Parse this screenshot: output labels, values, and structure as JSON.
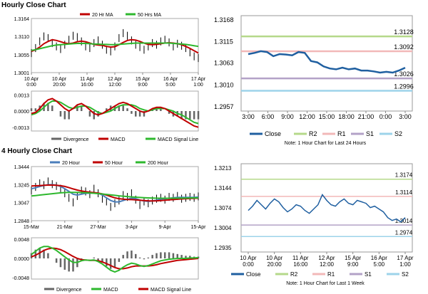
{
  "sections": {
    "top_title": "Hourly Close Chart",
    "bottom_title": "4 Hourly Close Chart"
  },
  "chart_data": [
    {
      "id": "hourly-price",
      "type": "line",
      "x_ticks": [
        "10 Apr\n0:00",
        "10 Apr\n20:00",
        "11 Apr\n16:00",
        "12 Apr\n12:00",
        "15 Apr\n9:00",
        "16 Apr\n5:00",
        "17 Apr\n1:00"
      ],
      "y_ticks": [
        1.3001,
        1.3055,
        1.311,
        1.3164
      ],
      "ylim": [
        1.3001,
        1.3164
      ],
      "legend": [
        "20 Hr MA",
        "50 Hrs MA"
      ],
      "colors": {
        "price": "#000000",
        "ma20": "#c00000",
        "ma50": "#2eb82e"
      },
      "close": [
        1.306,
        1.3075,
        1.3095,
        1.311,
        1.3105,
        1.309,
        1.308,
        1.3072,
        1.3085,
        1.31,
        1.3112,
        1.3108,
        1.3095,
        1.308,
        1.3075,
        1.309,
        1.3098,
        1.3085,
        1.307,
        1.3065,
        1.308,
        1.3105,
        1.312,
        1.3112,
        1.3098,
        1.3085,
        1.3078,
        1.307,
        1.308,
        1.309,
        1.3085,
        1.3095,
        1.31,
        1.3092,
        1.308,
        1.3088,
        1.3082,
        1.3075,
        1.3062,
        1.305,
        1.3045
      ],
      "ma20": [
        1.3065,
        1.307,
        1.3078,
        1.3088,
        1.3095,
        1.31,
        1.3098,
        1.3094,
        1.309,
        1.3088,
        1.309,
        1.3094,
        1.3096,
        1.3094,
        1.309,
        1.3086,
        1.3084,
        1.3083,
        1.308,
        1.3078,
        1.3079,
        1.3085,
        1.3092,
        1.3098,
        1.31,
        1.3099,
        1.3095,
        1.309,
        1.3086,
        1.3085,
        1.3086,
        1.3088,
        1.309,
        1.3091,
        1.309,
        1.3088,
        1.3085,
        1.308,
        1.3074,
        1.3067,
        1.306
      ],
      "ma50": [
        1.3068,
        1.307,
        1.3073,
        1.3076,
        1.3079,
        1.3082,
        1.3084,
        1.3085,
        1.3086,
        1.3087,
        1.3088,
        1.3089,
        1.3089,
        1.3089,
        1.3088,
        1.3087,
        1.3087,
        1.3086,
        1.3086,
        1.3085,
        1.3085,
        1.3086,
        1.3087,
        1.3088,
        1.3089,
        1.309,
        1.309,
        1.309,
        1.309,
        1.309,
        1.309,
        1.309,
        1.309,
        1.309,
        1.3089,
        1.3088,
        1.3087,
        1.3086,
        1.3084,
        1.3082,
        1.308
      ]
    },
    {
      "id": "hourly-macd",
      "type": "line",
      "y_ticks": [
        -0.0013,
        0.0,
        0.0013
      ],
      "ylim": [
        -0.0016,
        0.0016
      ],
      "legend": [
        "Divergence",
        "MACD",
        "MACD Signal Line"
      ],
      "colors": {
        "divergence": "#666666",
        "macd": "#c00000",
        "signal": "#2eb82e"
      },
      "macd": [
        -0.0002,
        -0.0001,
        0.0002,
        0.0006,
        0.0009,
        0.001,
        0.0008,
        0.0005,
        0.0002,
        0.0,
        0.0002,
        0.0005,
        0.0006,
        0.0004,
        0.0001,
        -0.0002,
        -0.0003,
        -0.0002,
        0.0,
        0.0002,
        0.0004,
        0.0006,
        0.0007,
        0.0006,
        0.0004,
        0.0002,
        0.0,
        -0.0001,
        0.0,
        0.0002,
        0.0003,
        0.0003,
        0.0002,
        0.0,
        -0.0002,
        -0.0004,
        -0.0006,
        -0.0008,
        -0.001,
        -0.0012,
        -0.0013
      ],
      "signal": [
        -0.0003,
        -0.0002,
        0.0,
        0.0003,
        0.0006,
        0.0008,
        0.0008,
        0.0007,
        0.0005,
        0.0003,
        0.0002,
        0.0003,
        0.0004,
        0.0004,
        0.0003,
        0.0001,
        -0.0001,
        -0.0002,
        -0.0001,
        0.0,
        0.0002,
        0.0004,
        0.0005,
        0.0005,
        0.0005,
        0.0004,
        0.0002,
        0.0001,
        0.0,
        0.0001,
        0.0002,
        0.0002,
        0.0002,
        0.0001,
        0.0,
        -0.0002,
        -0.0003,
        -0.0005,
        -0.0007,
        -0.0009,
        -0.001
      ]
    },
    {
      "id": "hourly-24h",
      "type": "line",
      "x_ticks": [
        "3:00",
        "6:00",
        "9:00",
        "12:00",
        "15:00",
        "18:00",
        "21:00",
        "0:00",
        "3:00"
      ],
      "y_ticks": [
        1.2957,
        1.301,
        1.3063,
        1.3115,
        1.3168
      ],
      "ylim": [
        1.2957,
        1.3168
      ],
      "levels": [
        {
          "name": "R2",
          "value": 1.3128,
          "label": "1.3128",
          "color": "#b5d98a"
        },
        {
          "name": "R1",
          "value": 1.3092,
          "label": "1.3092",
          "color": "#f2b8b8"
        },
        {
          "name": "S1",
          "value": 1.3026,
          "label": "1.3026",
          "color": "#b3a2c7"
        },
        {
          "name": "S2",
          "value": 1.2996,
          "label": "1.2996",
          "color": "#9dd3ea"
        }
      ],
      "close_color": "#1f5fa0",
      "close": [
        1.3085,
        1.3088,
        1.3092,
        1.309,
        1.308,
        1.3085,
        1.3084,
        1.3082,
        1.309,
        1.3088,
        1.3068,
        1.3065,
        1.3055,
        1.305,
        1.3048,
        1.3052,
        1.3048,
        1.305,
        1.3045,
        1.3045,
        1.3043,
        1.304,
        1.3042,
        1.304,
        1.3045,
        1.3052
      ],
      "legend": [
        "Close",
        "R2",
        "R1",
        "S1",
        "S2"
      ],
      "note": "Note: 1 Hour Chart for Last 24 Hours"
    },
    {
      "id": "4h-price",
      "type": "line",
      "x_ticks": [
        "15-Mar",
        "21-Mar",
        "27-Mar",
        "3-Apr",
        "9-Apr",
        "15-Apr"
      ],
      "y_ticks": [
        1.2848,
        1.3047,
        1.3245,
        1.3444
      ],
      "ylim": [
        1.2848,
        1.3444
      ],
      "legend": [
        "20 Hour",
        "50 Hour",
        "200 Hour"
      ],
      "colors": {
        "price": "#000000",
        "h20": "#4a7ebb",
        "h50": "#c00000",
        "h200": "#2eb82e"
      },
      "close": [
        1.318,
        1.322,
        1.326,
        1.324,
        1.328,
        1.325,
        1.323,
        1.32,
        1.315,
        1.31,
        1.305,
        1.312,
        1.318,
        1.317,
        1.314,
        1.32,
        1.315,
        1.309,
        1.306,
        1.3,
        1.304,
        1.307,
        1.313,
        1.311,
        1.315,
        1.308,
        1.302,
        1.306,
        1.304,
        1.307,
        1.309,
        1.31,
        1.308,
        1.311,
        1.31,
        1.312,
        1.309,
        1.31,
        1.311,
        1.31,
        1.3115
      ],
      "h20": [
        1.32,
        1.321,
        1.3225,
        1.3235,
        1.3245,
        1.3245,
        1.324,
        1.3225,
        1.32,
        1.317,
        1.314,
        1.313,
        1.314,
        1.315,
        1.315,
        1.3155,
        1.315,
        1.313,
        1.31,
        1.307,
        1.3055,
        1.3055,
        1.307,
        1.3085,
        1.3095,
        1.309,
        1.3075,
        1.3065,
        1.306,
        1.3065,
        1.3075,
        1.3085,
        1.309,
        1.3095,
        1.31,
        1.3105,
        1.3105,
        1.3105,
        1.3105,
        1.3105,
        1.3108
      ],
      "h50": [
        1.323,
        1.3232,
        1.3235,
        1.3238,
        1.324,
        1.324,
        1.3238,
        1.3233,
        1.3225,
        1.3212,
        1.3198,
        1.3185,
        1.3175,
        1.3168,
        1.3162,
        1.3158,
        1.3152,
        1.3143,
        1.313,
        1.3115,
        1.31,
        1.309,
        1.3085,
        1.3082,
        1.308,
        1.3078,
        1.3074,
        1.307,
        1.3067,
        1.3066,
        1.3067,
        1.307,
        1.3073,
        1.3077,
        1.308,
        1.3084,
        1.3087,
        1.309,
        1.3092,
        1.3094,
        1.3096
      ],
      "h200": [
        1.312,
        1.3125,
        1.313,
        1.3135,
        1.314,
        1.3145,
        1.315,
        1.3155,
        1.3158,
        1.316,
        1.316,
        1.316,
        1.3158,
        1.3156,
        1.3153,
        1.315,
        1.3146,
        1.3142,
        1.3137,
        1.3132,
        1.3127,
        1.3122,
        1.3118,
        1.3114,
        1.311,
        1.3107,
        1.3104,
        1.3101,
        1.3099,
        1.3097,
        1.3096,
        1.3095,
        1.3095,
        1.3095,
        1.3095,
        1.3096,
        1.3096,
        1.3097,
        1.3098,
        1.3099,
        1.31
      ]
    },
    {
      "id": "4h-macd",
      "type": "line",
      "y_ticks": [
        -0.0048,
        0.0,
        0.0048
      ],
      "ylim": [
        -0.0052,
        0.0052
      ],
      "legend": [
        "Divergence",
        "MACD",
        "MACD Signal Line"
      ],
      "colors": {
        "divergence": "#666666",
        "macd": "#2eb82e",
        "signal": "#c00000"
      },
      "macd": [
        0.001,
        0.0018,
        0.0026,
        0.003,
        0.003,
        0.0026,
        0.002,
        0.0012,
        0.0004,
        -0.0004,
        -0.001,
        -0.001,
        -0.0006,
        -0.0004,
        -0.0005,
        -0.0004,
        -0.0008,
        -0.0014,
        -0.0022,
        -0.003,
        -0.0034,
        -0.003,
        -0.0022,
        -0.0016,
        -0.0012,
        -0.0014,
        -0.0018,
        -0.002,
        -0.0018,
        -0.0014,
        -0.001,
        -0.0006,
        -0.0004,
        -0.0002,
        -0.0001,
        0.0,
        0.0,
        0.0,
        0.0001,
        0.0001,
        0.0002
      ],
      "signal": [
        0.0004,
        0.0008,
        0.0014,
        0.002,
        0.0024,
        0.0026,
        0.0025,
        0.0022,
        0.0017,
        0.0011,
        0.0005,
        0.0,
        -0.0003,
        -0.0004,
        -0.0005,
        -0.0005,
        -0.0006,
        -0.0009,
        -0.0013,
        -0.0018,
        -0.0023,
        -0.0026,
        -0.0026,
        -0.0024,
        -0.0021,
        -0.0019,
        -0.0019,
        -0.0019,
        -0.0019,
        -0.0018,
        -0.0016,
        -0.0013,
        -0.0011,
        -0.0009,
        -0.0007,
        -0.0005,
        -0.0004,
        -0.0003,
        -0.0002,
        -0.0001,
        0.0
      ]
    },
    {
      "id": "4h-week",
      "type": "line",
      "x_ticks": [
        "10 Apr\n0:00",
        "10 Apr\n20:00",
        "11 Apr\n16:00",
        "12 Apr\n12:00",
        "15 Apr\n9:00",
        "16 Apr\n5:00",
        "17 Apr\n1:00"
      ],
      "y_ticks": [
        1.2935,
        1.3004,
        1.3074,
        1.3144,
        1.3213
      ],
      "ylim": [
        1.2935,
        1.3213
      ],
      "levels": [
        {
          "name": "R2",
          "value": 1.3174,
          "label": "1.3174",
          "color": "#b5d98a"
        },
        {
          "name": "R1",
          "value": 1.3114,
          "label": "1.3114",
          "color": "#f2b8b8"
        },
        {
          "name": "S1",
          "value": 1.3014,
          "label": "1.3014",
          "color": "#b3a2c7"
        },
        {
          "name": "S2",
          "value": 1.2974,
          "label": "1.2974",
          "color": "#9dd3ea"
        }
      ],
      "close_color": "#1f5fa0",
      "close": [
        1.3065,
        1.308,
        1.31,
        1.3085,
        1.307,
        1.309,
        1.3105,
        1.3095,
        1.3075,
        1.306,
        1.307,
        1.3085,
        1.308,
        1.3065,
        1.3055,
        1.307,
        1.3085,
        1.312,
        1.31,
        1.3085,
        1.308,
        1.3095,
        1.3105,
        1.309,
        1.3085,
        1.31,
        1.3095,
        1.309,
        1.3075,
        1.308,
        1.307,
        1.306,
        1.304,
        1.303,
        1.3035,
        1.3025,
        1.304
      ],
      "legend": [
        "Close",
        "R2",
        "R1",
        "S1",
        "S2"
      ],
      "note": "Note: 1 Hour Chart for Last 1 Week"
    }
  ]
}
